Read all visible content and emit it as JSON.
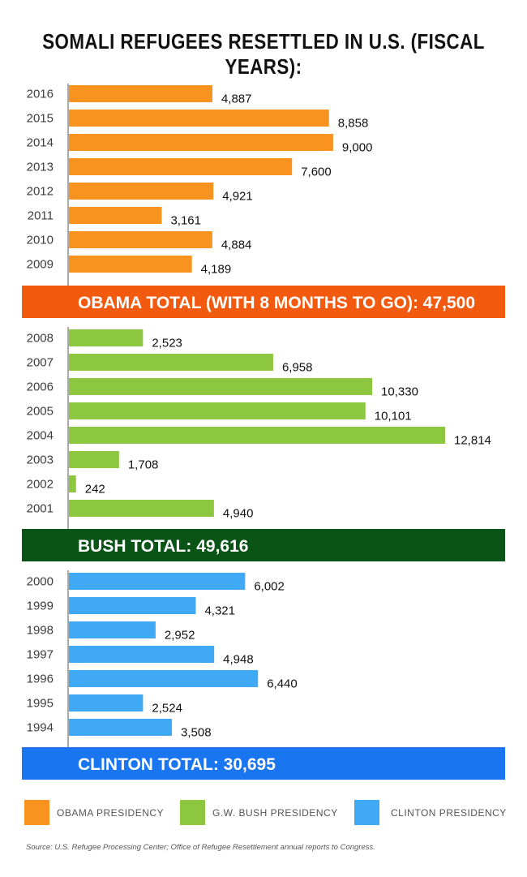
{
  "title": "SOMALI REFUGEES RESETTLED IN U.S. (FISCAL YEARS):",
  "source": "Source: U.S. Refugee Processing Center; Office of Refugee Resettlement annual reports to Congress.",
  "colors": {
    "obama_bar": "#F7931E",
    "bush_bar": "#8DC63F",
    "clinton_bar": "#3FA9F5",
    "obama_banner": "#F15A0F",
    "bush_banner": "#0B5418",
    "clinton_banner": "#1A75F0",
    "axis": "#555555"
  },
  "chart_data": {
    "type": "bar",
    "orientation": "horizontal",
    "xlim": [
      0,
      14000
    ],
    "groups": [
      {
        "name": "OBAMA PRESIDENCY",
        "banner": "OBAMA TOTAL (WITH 8 MONTHS TO GO): 47,500",
        "categories": [
          "2016",
          "2015",
          "2014",
          "2013",
          "2012",
          "2011",
          "2010",
          "2009"
        ],
        "values": [
          4887,
          8858,
          9000,
          7600,
          4921,
          3161,
          4884,
          4189
        ],
        "labels": [
          "4,887",
          "8,858",
          "9,000",
          "7,600",
          "4,921",
          "3,161",
          "4,884",
          "4,189"
        ]
      },
      {
        "name": "G.W. BUSH PRESIDENCY",
        "banner": "BUSH TOTAL: 49,616",
        "categories": [
          "2008",
          "2007",
          "2006",
          "2005",
          "2004",
          "2003",
          "2002",
          "2001"
        ],
        "values": [
          2523,
          6958,
          10330,
          10101,
          12814,
          1708,
          242,
          4940
        ],
        "labels": [
          "2,523",
          "6,958",
          "10,330",
          "10,101",
          "12,814",
          "1,708",
          "242",
          "4,940"
        ]
      },
      {
        "name": "CLINTON PRESIDENCY",
        "banner": "CLINTON TOTAL: 30,695",
        "categories": [
          "2000",
          "1999",
          "1998",
          "1997",
          "1996",
          "1995",
          "1994"
        ],
        "values": [
          6002,
          4321,
          2952,
          4948,
          6440,
          2524,
          3508
        ],
        "labels": [
          "6,002",
          "4,321",
          "2,952",
          "4,948",
          "6,440",
          "2,524",
          "3,508"
        ]
      }
    ],
    "legend": [
      "OBAMA PRESIDENCY",
      "G.W. BUSH PRESIDENCY",
      "CLINTON PRESIDENCY"
    ],
    "legend_position": "bottom"
  }
}
